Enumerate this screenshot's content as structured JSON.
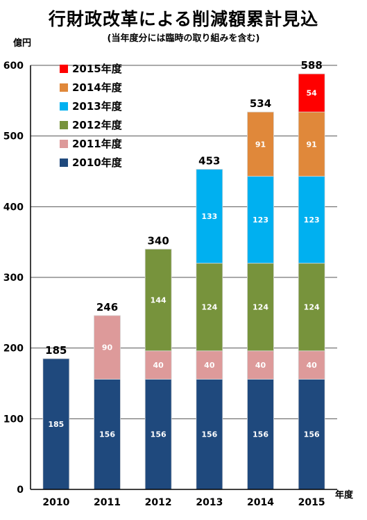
{
  "chart_data": {
    "type": "bar",
    "stacked": true,
    "title": "行財政改革による削減額累計見込",
    "subtitle": "(当年度分には臨時の取り組みを含む)",
    "ylabel": "億円",
    "xlabel": "年度",
    "ylim": [
      0,
      600
    ],
    "yticks": [
      0,
      100,
      200,
      300,
      400,
      500,
      600
    ],
    "categories": [
      "2010",
      "2011",
      "2012",
      "2013",
      "2014",
      "2015"
    ],
    "series": [
      {
        "name": "2010年度",
        "color": "#1f497d",
        "values": [
          185,
          156,
          156,
          156,
          156,
          156
        ]
      },
      {
        "name": "2011年度",
        "color": "#dd9a9a",
        "values": [
          0,
          90,
          40,
          40,
          40,
          40
        ]
      },
      {
        "name": "2012年度",
        "color": "#77933c",
        "values": [
          0,
          0,
          144,
          124,
          124,
          124
        ]
      },
      {
        "name": "2013年度",
        "color": "#00b0f0",
        "values": [
          0,
          0,
          0,
          133,
          123,
          123
        ]
      },
      {
        "name": "2014年度",
        "color": "#e0883a",
        "values": [
          0,
          0,
          0,
          0,
          91,
          91
        ]
      },
      {
        "name": "2015年度",
        "color": "#ff0000",
        "values": [
          0,
          0,
          0,
          0,
          0,
          54
        ]
      }
    ],
    "totals": [
      185,
      246,
      340,
      453,
      534,
      588
    ],
    "legend_position": "top-left",
    "grid": true
  }
}
